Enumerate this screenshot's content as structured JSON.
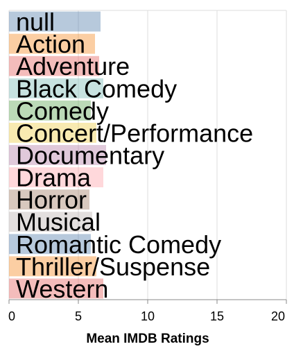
{
  "chart_data": {
    "type": "bar",
    "orientation": "horizontal",
    "categories": [
      "null",
      "Action",
      "Adventure",
      "Black Comedy",
      "Comedy",
      "Concert/Performance",
      "Documentary",
      "Drama",
      "Horror",
      "Musical",
      "Romantic Comedy",
      "Thriller/Suspense",
      "Western"
    ],
    "values": [
      6.6,
      6.2,
      6.5,
      6.8,
      5.9,
      6.3,
      7.0,
      6.8,
      5.8,
      6.0,
      5.9,
      6.3,
      6.8
    ],
    "colors": [
      "#4c78a8",
      "#f58518",
      "#e45756",
      "#72b7b2",
      "#54a24b",
      "#eeca3b",
      "#b279a2",
      "#ff9da6",
      "#9d755d",
      "#bab0ac",
      "#4c78a8",
      "#f58518",
      "#e45756"
    ],
    "bar_opacity": 0.4,
    "xlabel": "Mean IMDB Ratings",
    "ylabel": "",
    "xlim": [
      0,
      20
    ],
    "x_ticks": [
      "0",
      "5",
      "10",
      "15",
      "20"
    ],
    "grid": true
  }
}
